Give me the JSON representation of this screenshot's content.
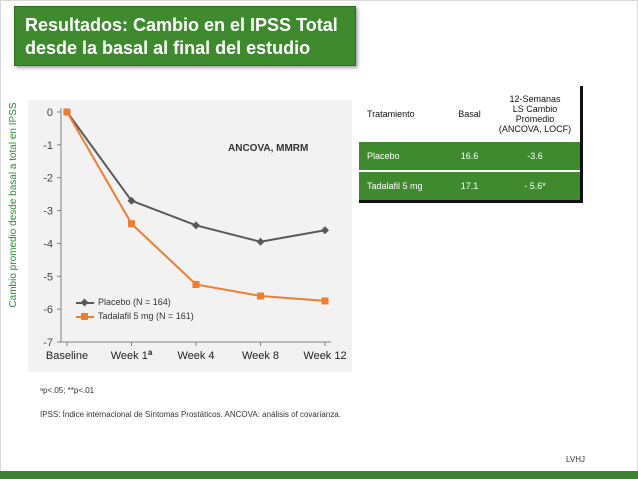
{
  "title": {
    "line1": "Resultados: Cambio en el IPSS Total",
    "line2": "desde la basal al final del estudio"
  },
  "colors": {
    "title_bg": "#3f8a2f",
    "accent_green": "#3f8a2f",
    "placebo": "#595959",
    "tadalafil": "#ed7d31"
  },
  "chart_data": {
    "type": "line",
    "ylabel": "Cambio promedio desde basal a total en IPSS",
    "categories": [
      "Baseline",
      "Week 1",
      "Week 4",
      "Week 8",
      "Week 12"
    ],
    "category_superscripts": [
      "",
      "a",
      "",
      "",
      ""
    ],
    "ylim": [
      -7,
      0
    ],
    "yticks": [
      "0",
      "-1",
      "-2",
      "-3",
      "-4",
      "-5",
      "-6",
      "-7"
    ],
    "ytick_values": [
      0,
      -1,
      -2,
      -3,
      -4,
      -5,
      -6,
      -7
    ],
    "grid": false,
    "legend_position": "bottom-left",
    "annotation": "ANCOVA, MMRM",
    "series": [
      {
        "name": "Placebo (N = 164)",
        "values": [
          0,
          -2.7,
          -3.45,
          -3.95,
          -3.6
        ],
        "marker": "diamond"
      },
      {
        "name": "Tadalafil 5 mg (N = 161)",
        "values": [
          0,
          -3.4,
          -5.25,
          -5.6,
          -5.75
        ],
        "marker": "square"
      }
    ]
  },
  "table": {
    "headers": [
      "Tratamiento",
      "Basal",
      "12-Semanas\nLS Cambio\nPromedio\n(ANCOVA, LOCF)"
    ],
    "rows": [
      [
        "Placebo",
        "16.6",
        "-3.6"
      ],
      [
        "Tadalafil 5 mg",
        "17.1",
        "- 5.6*"
      ]
    ]
  },
  "footnotes": {
    "significance": "ᵃp<.05; **p<.01",
    "abbreviations": "IPSS: Índice internacional de Síntomas Prostáticos. ANCOVA: análisis of covarianza."
  },
  "footer_tag": "LVHJ"
}
